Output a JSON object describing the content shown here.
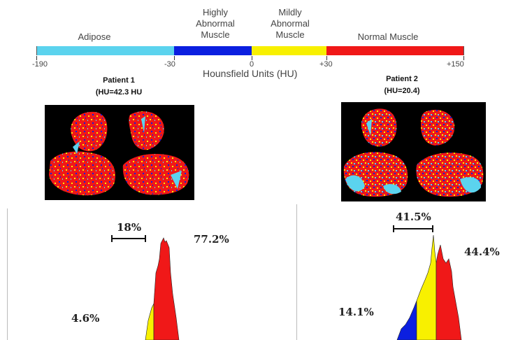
{
  "legend": {
    "categories": [
      {
        "label": "Adipose",
        "color": "#5BD3EE"
      },
      {
        "label": "Highly\nAbnormal\nMuscle",
        "color": "#0B1FE0"
      },
      {
        "label": "Mildly\nAbnormal\nMuscle",
        "color": "#F8F000"
      },
      {
        "label": "Normal Muscle",
        "color": "#F01818"
      }
    ],
    "ticks": [
      "-190",
      "-30",
      "0",
      "+30",
      "+150"
    ],
    "axis_title": "Hounsfield Units (HU)"
  },
  "patients": [
    {
      "name": "Patient 1",
      "hu": "(HU=42.3 HU",
      "scan": "ct-scan-cross-section",
      "percentages": {
        "left": "4.6%",
        "middle": "18%",
        "right": "77.2%"
      }
    },
    {
      "name": "Patient 2",
      "hu": "(HU=20.4)",
      "scan": "ct-scan-cross-section",
      "percentages": {
        "left": "14.1%",
        "middle": "41.5%",
        "right": "44.4%"
      }
    }
  ]
}
